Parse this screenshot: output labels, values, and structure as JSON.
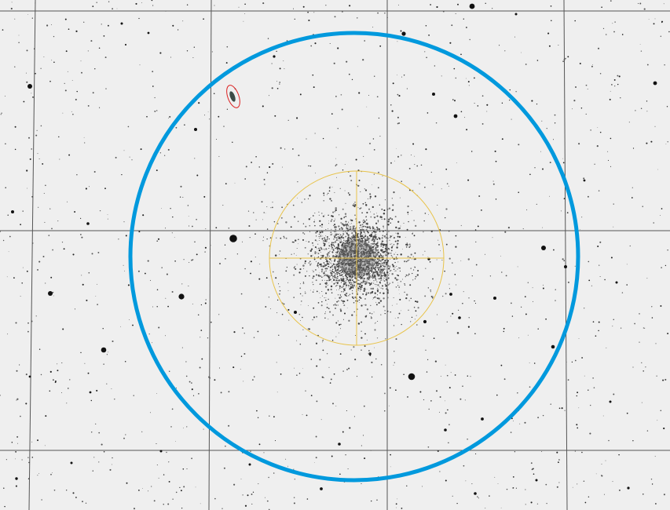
{
  "view": {
    "background_color": "#efefef",
    "grid_color": "#555555",
    "field_circle_color": "#0099dd",
    "target_marker_color": "#e8c34a",
    "galaxy_marker_color": "#dd2222"
  },
  "objects": {
    "field_circle": {
      "name": "field-of-view-circle"
    },
    "target": {
      "name": "globular-cluster-target"
    },
    "galaxy": {
      "name": "galaxy-marker"
    }
  }
}
